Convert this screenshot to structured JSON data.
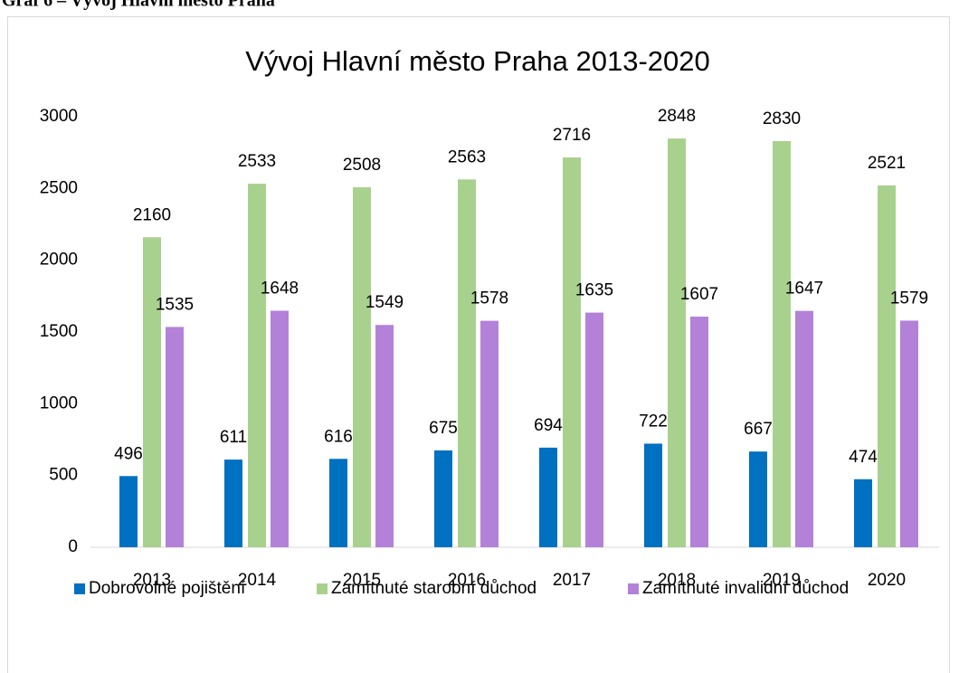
{
  "caption": "Graf 6 – Vývoj Hlavní město Praha",
  "chart_data": {
    "type": "bar",
    "title": "Vývoj Hlavní město Praha 2013-2020",
    "categories": [
      "2013",
      "2014",
      "2015",
      "2016",
      "2017",
      "2018",
      "2019",
      "2020"
    ],
    "series": [
      {
        "name": "Dobrovolné pojištění",
        "color": "#0070c0",
        "values": [
          496,
          611,
          616,
          675,
          694,
          722,
          667,
          474
        ]
      },
      {
        "name": "Zamítnuté starobní důchod",
        "color": "#a9d18e",
        "values": [
          2160,
          2533,
          2508,
          2563,
          2716,
          2848,
          2830,
          2521
        ]
      },
      {
        "name": "Zamítnuté invalidní důchod",
        "color": "#b481d9",
        "values": [
          1535,
          1648,
          1549,
          1578,
          1635,
          1607,
          1647,
          1579
        ]
      }
    ],
    "ylim": [
      0,
      3000
    ],
    "yticks": [
      0,
      500,
      1000,
      1500,
      2000,
      2500,
      3000
    ],
    "grid": false,
    "legend": "bottom"
  }
}
